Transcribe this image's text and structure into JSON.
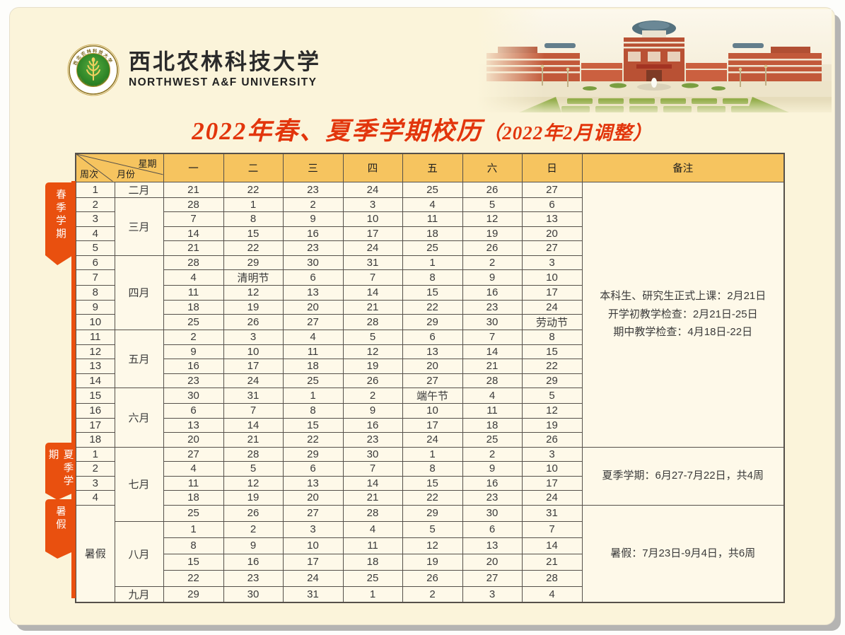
{
  "colors": {
    "accent_orange": "#E8470C",
    "ribbon_orange": "#E9500F",
    "header_amber": "#F6C45F",
    "card_cream": "#FBF4DA",
    "cell_cream": "#FEF9E9",
    "grid": "#55504A",
    "title_red": "#E2350C"
  },
  "brand": {
    "university_cn": "西北农林科技大学",
    "university_en": "NORTHWEST A&F UNIVERSITY",
    "logo": "wheat-emblem",
    "photo": "campus-photo"
  },
  "title": {
    "main": "2022年春、夏季学期校历",
    "suffix": "（2022年2月调整）"
  },
  "table": {
    "corner": {
      "weekday": "星期",
      "month": "月份",
      "week": "周次"
    },
    "day_headers": [
      "一",
      "二",
      "三",
      "四",
      "五",
      "六",
      "日"
    ],
    "remarks_header": "备注",
    "tabs": [
      {
        "label": "春季学期"
      },
      {
        "label": "夏季学期"
      },
      {
        "label": "暑假"
      }
    ],
    "months": [
      {
        "label": "二月",
        "span": 1
      },
      {
        "label": "三月",
        "span": 4
      },
      {
        "label": "四月",
        "span": 5
      },
      {
        "label": "五月",
        "span": 4
      },
      {
        "label": "六月",
        "span": 4
      },
      {
        "label": "七月",
        "span": 5
      },
      {
        "label": "八月",
        "span": 4
      },
      {
        "label": "九月",
        "span": 1
      }
    ],
    "week_merge": {
      "label": "暑假",
      "start": 22,
      "span": 6
    },
    "remarks": [
      {
        "start": 0,
        "span": 18,
        "lines": [
          "本科生、研究生正式上课：2月21日",
          "开学初教学检查：2月21日-25日",
          "期中教学检查：4月18日-22日"
        ]
      },
      {
        "start": 18,
        "span": 4,
        "lines": [
          "夏季学期：6月27-7月22日，共4周"
        ]
      },
      {
        "start": 22,
        "span": 6,
        "lines": [
          "暑假：7月23日-9月4日，共6周"
        ]
      }
    ],
    "rows": [
      {
        "week": "1",
        "days": [
          "21",
          "22",
          "23",
          "24",
          "25",
          "26",
          "27"
        ],
        "orange": [
          5,
          6
        ]
      },
      {
        "week": "2",
        "days": [
          "28",
          "1",
          "2",
          "3",
          "4",
          "5",
          "6"
        ],
        "orange": [
          5,
          6
        ]
      },
      {
        "week": "3",
        "days": [
          "7",
          "8",
          "9",
          "10",
          "11",
          "12",
          "13"
        ],
        "orange": [
          5,
          6
        ]
      },
      {
        "week": "4",
        "days": [
          "14",
          "15",
          "16",
          "17",
          "18",
          "19",
          "20"
        ],
        "orange": [
          5,
          6
        ]
      },
      {
        "week": "5",
        "days": [
          "21",
          "22",
          "23",
          "24",
          "25",
          "26",
          "27"
        ],
        "orange": [
          5,
          6
        ]
      },
      {
        "week": "6",
        "days": [
          "28",
          "29",
          "30",
          "31",
          "1",
          "2",
          "3"
        ],
        "orange": [
          5,
          6
        ]
      },
      {
        "week": "7",
        "days": [
          "4",
          "清明节",
          "6",
          "7",
          "8",
          "9",
          "10"
        ],
        "orange": [
          1,
          5,
          6
        ]
      },
      {
        "week": "8",
        "days": [
          "11",
          "12",
          "13",
          "14",
          "15",
          "16",
          "17"
        ],
        "orange": [
          5,
          6
        ]
      },
      {
        "week": "9",
        "days": [
          "18",
          "19",
          "20",
          "21",
          "22",
          "23",
          "24"
        ],
        "orange": [
          5,
          6
        ]
      },
      {
        "week": "10",
        "days": [
          "25",
          "26",
          "27",
          "28",
          "29",
          "30",
          "劳动节"
        ],
        "orange": [
          5,
          6
        ]
      },
      {
        "week": "11",
        "days": [
          "2",
          "3",
          "4",
          "5",
          "6",
          "7",
          "8"
        ],
        "orange": [
          5,
          6
        ]
      },
      {
        "week": "12",
        "days": [
          "9",
          "10",
          "11",
          "12",
          "13",
          "14",
          "15"
        ],
        "orange": [
          5,
          6
        ]
      },
      {
        "week": "13",
        "days": [
          "16",
          "17",
          "18",
          "19",
          "20",
          "21",
          "22"
        ],
        "orange": [
          5,
          6
        ]
      },
      {
        "week": "14",
        "days": [
          "23",
          "24",
          "25",
          "26",
          "27",
          "28",
          "29"
        ],
        "orange": [
          5,
          6
        ]
      },
      {
        "week": "15",
        "days": [
          "30",
          "31",
          "1",
          "2",
          "端午节",
          "4",
          "5"
        ],
        "orange": [
          4,
          5,
          6
        ]
      },
      {
        "week": "16",
        "days": [
          "6",
          "7",
          "8",
          "9",
          "10",
          "11",
          "12"
        ],
        "orange": [
          5,
          6
        ]
      },
      {
        "week": "17",
        "days": [
          "13",
          "14",
          "15",
          "16",
          "17",
          "18",
          "19"
        ],
        "orange": [
          5,
          6
        ]
      },
      {
        "week": "18",
        "days": [
          "20",
          "21",
          "22",
          "23",
          "24",
          "25",
          "26"
        ],
        "orange": [
          5,
          6
        ]
      },
      {
        "week": "1",
        "days": [
          "27",
          "28",
          "29",
          "30",
          "1",
          "2",
          "3"
        ],
        "orange": [
          5,
          6
        ]
      },
      {
        "week": "2",
        "days": [
          "4",
          "5",
          "6",
          "7",
          "8",
          "9",
          "10"
        ],
        "orange": [
          5,
          6
        ]
      },
      {
        "week": "3",
        "days": [
          "11",
          "12",
          "13",
          "14",
          "15",
          "16",
          "17"
        ],
        "orange": [
          5,
          6
        ]
      },
      {
        "week": "4",
        "days": [
          "18",
          "19",
          "20",
          "21",
          "22",
          "23",
          "24"
        ],
        "orange": [
          5,
          6
        ]
      },
      {
        "week": null,
        "days": [
          "25",
          "26",
          "27",
          "28",
          "29",
          "30",
          "31"
        ],
        "orange": [
          0,
          1,
          2,
          3,
          4,
          5,
          6
        ]
      },
      {
        "week": null,
        "days": [
          "1",
          "2",
          "3",
          "4",
          "5",
          "6",
          "7"
        ],
        "orange": [
          0,
          1,
          2,
          3,
          4,
          5,
          6
        ]
      },
      {
        "week": null,
        "days": [
          "8",
          "9",
          "10",
          "11",
          "12",
          "13",
          "14"
        ],
        "orange": [
          0,
          1,
          2,
          3,
          4,
          5,
          6
        ]
      },
      {
        "week": null,
        "days": [
          "15",
          "16",
          "17",
          "18",
          "19",
          "20",
          "21"
        ],
        "orange": [
          0,
          1,
          2,
          3,
          4,
          5,
          6
        ]
      },
      {
        "week": null,
        "days": [
          "22",
          "23",
          "24",
          "25",
          "26",
          "27",
          "28"
        ],
        "orange": [
          0,
          1,
          2,
          3,
          4,
          5,
          6
        ]
      },
      {
        "week": null,
        "days": [
          "29",
          "30",
          "31",
          "1",
          "2",
          "3",
          "4"
        ],
        "orange": [
          0,
          1,
          2,
          3,
          4,
          5,
          6
        ]
      }
    ]
  }
}
